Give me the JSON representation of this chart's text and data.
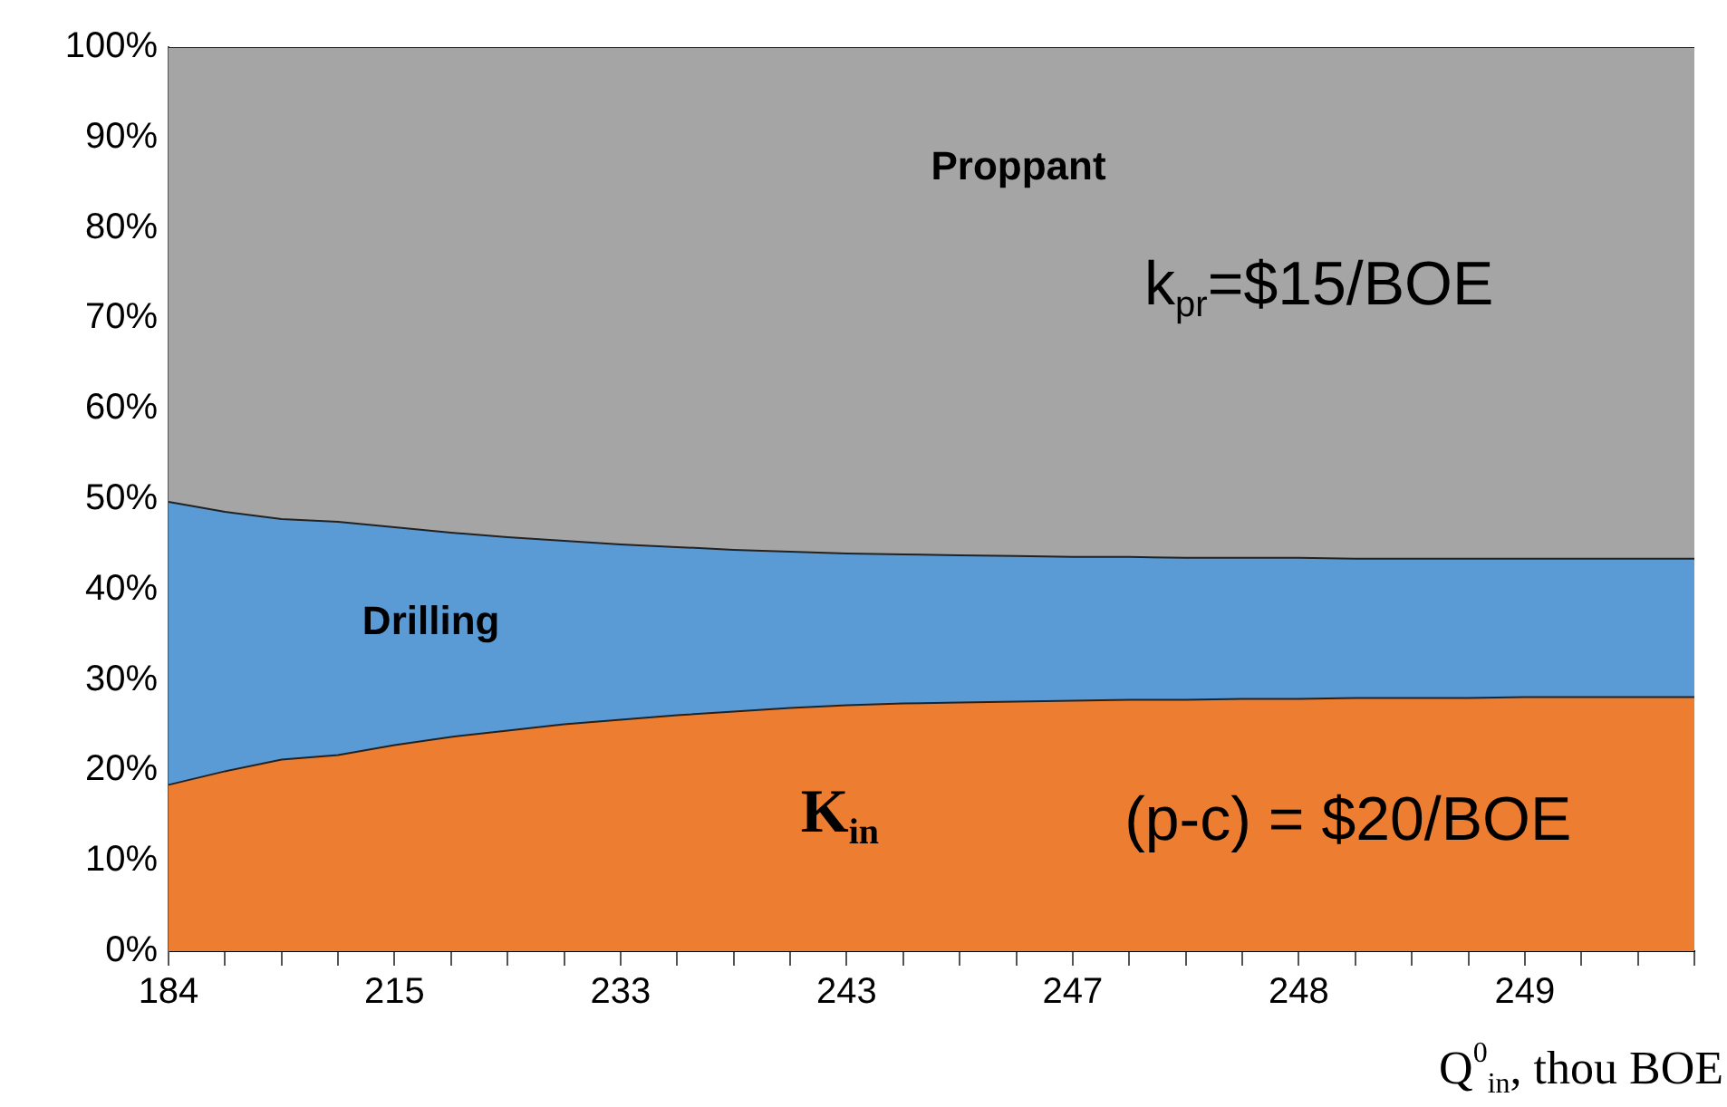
{
  "chart_data": {
    "type": "area",
    "stacked": true,
    "xlabel": "Q$^{0}$$_{in}$, thou BOE",
    "categories": [
      "184",
      null,
      null,
      null,
      "215",
      null,
      null,
      null,
      "233",
      null,
      null,
      null,
      "243",
      null,
      null,
      null,
      "247",
      null,
      null,
      null,
      "248",
      null,
      null,
      null,
      "249",
      null,
      null,
      null
    ],
    "series": [
      {
        "name": "K$_{in}$",
        "color": "#ed7d31",
        "values": [
          18.4,
          19.9,
          21.2,
          21.7,
          22.8,
          23.7,
          24.4,
          25.1,
          25.6,
          26.1,
          26.5,
          26.9,
          27.2,
          27.4,
          27.5,
          27.6,
          27.7,
          27.8,
          27.8,
          27.9,
          27.9,
          28.0,
          28.0,
          28.0,
          28.1,
          28.1,
          28.1,
          28.1
        ]
      },
      {
        "name": "Drilling",
        "color": "#5b9bd5",
        "values": [
          31.3,
          28.7,
          26.6,
          25.8,
          24.1,
          22.6,
          21.4,
          20.3,
          19.4,
          18.6,
          17.9,
          17.3,
          16.8,
          16.5,
          16.3,
          16.1,
          15.9,
          15.8,
          15.7,
          15.6,
          15.6,
          15.4,
          15.4,
          15.4,
          15.3,
          15.3,
          15.3,
          15.3
        ]
      },
      {
        "name": "Proppant",
        "color": "#a5a5a5",
        "values": [
          50.3,
          51.4,
          52.2,
          52.5,
          53.1,
          53.7,
          54.2,
          54.6,
          55.0,
          55.3,
          55.6,
          55.8,
          56.0,
          56.1,
          56.2,
          56.3,
          56.4,
          56.4,
          56.5,
          56.5,
          56.5,
          56.6,
          56.6,
          56.6,
          56.6,
          56.6,
          56.6,
          56.6
        ]
      }
    ],
    "ylim": [
      0,
      100
    ],
    "yticks": [
      {
        "value": 0,
        "label": "0%"
      },
      {
        "value": 10,
        "label": "10%"
      },
      {
        "value": 20,
        "label": "20%"
      },
      {
        "value": 30,
        "label": "30%"
      },
      {
        "value": 40,
        "label": "40%"
      },
      {
        "value": 50,
        "label": "50%"
      },
      {
        "value": 60,
        "label": "60%"
      },
      {
        "value": 70,
        "label": "70%"
      },
      {
        "value": 80,
        "label": "80%"
      },
      {
        "value": 90,
        "label": "90%"
      },
      {
        "value": 100,
        "label": "100%"
      }
    ],
    "annotations": [
      "k$_{pr}$=$15/BOE",
      "(p-c) = $20/BOE"
    ]
  }
}
